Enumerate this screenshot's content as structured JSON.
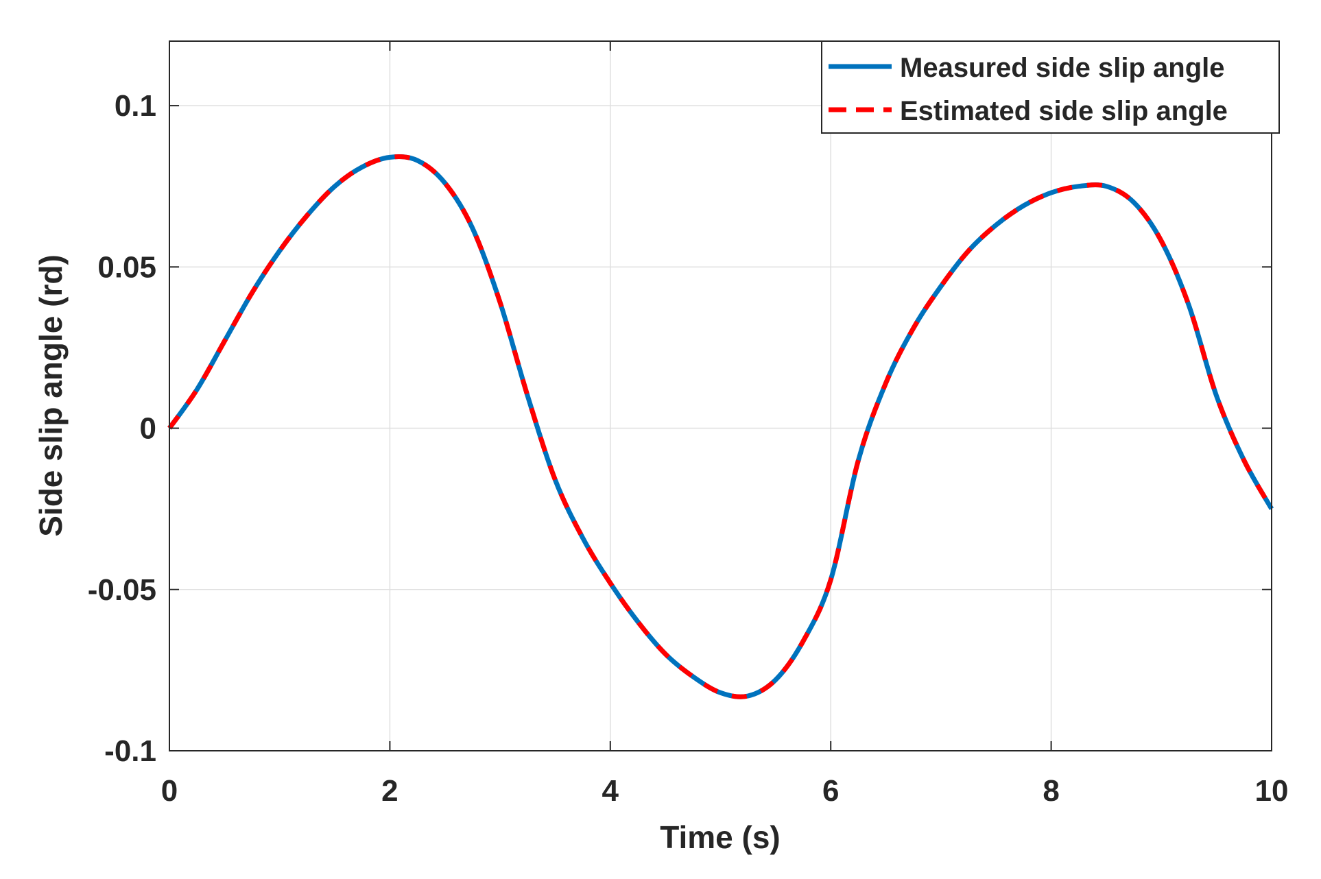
{
  "chart_data": {
    "type": "line",
    "title": "",
    "xlabel": "Time (s)",
    "ylabel": "Side slip angle (rd)",
    "xlim": [
      0,
      10
    ],
    "ylim": [
      -0.1,
      0.12
    ],
    "xticks": [
      0,
      2,
      4,
      6,
      8,
      10
    ],
    "xtick_labels": [
      "0",
      "2",
      "4",
      "6",
      "8",
      "10"
    ],
    "yticks": [
      -0.1,
      -0.05,
      0,
      0.05,
      0.1
    ],
    "ytick_labels": [
      "-0.1",
      "-0.05",
      "0",
      "0.05",
      "0.1"
    ],
    "grid": true,
    "legend_position": "top-right",
    "x": [
      0,
      0.25,
      0.5,
      0.75,
      1.0,
      1.25,
      1.5,
      1.75,
      2.0,
      2.25,
      2.5,
      2.75,
      3.0,
      3.25,
      3.5,
      3.75,
      4.0,
      4.25,
      4.5,
      4.75,
      5.0,
      5.25,
      5.5,
      5.75,
      6.0,
      6.25,
      6.5,
      6.75,
      7.0,
      7.25,
      7.5,
      7.75,
      8.0,
      8.25,
      8.5,
      8.75,
      9.0,
      9.25,
      9.5,
      9.75,
      10.0
    ],
    "series": [
      {
        "name": "Measured side slip angle",
        "color": "#0072BD",
        "style": "solid",
        "values": [
          0.0,
          0.012,
          0.027,
          0.042,
          0.055,
          0.066,
          0.075,
          0.081,
          0.084,
          0.083,
          0.076,
          0.062,
          0.039,
          0.01,
          -0.016,
          -0.034,
          -0.048,
          -0.06,
          -0.07,
          -0.077,
          -0.082,
          -0.083,
          -0.078,
          -0.066,
          -0.047,
          -0.01,
          0.014,
          0.031,
          0.044,
          0.055,
          0.063,
          0.069,
          0.073,
          0.075,
          0.075,
          0.07,
          0.058,
          0.038,
          0.01,
          -0.01,
          -0.025
        ]
      },
      {
        "name": "Estimated side slip angle",
        "color": "#FF0000",
        "style": "dashed",
        "values": [
          0.0,
          0.012,
          0.027,
          0.042,
          0.055,
          0.066,
          0.075,
          0.081,
          0.084,
          0.083,
          0.076,
          0.062,
          0.039,
          0.01,
          -0.016,
          -0.034,
          -0.048,
          -0.06,
          -0.07,
          -0.077,
          -0.082,
          -0.083,
          -0.078,
          -0.066,
          -0.047,
          -0.01,
          0.014,
          0.031,
          0.044,
          0.055,
          0.063,
          0.069,
          0.073,
          0.075,
          0.075,
          0.07,
          0.058,
          0.038,
          0.01,
          -0.01,
          -0.025
        ]
      }
    ]
  }
}
